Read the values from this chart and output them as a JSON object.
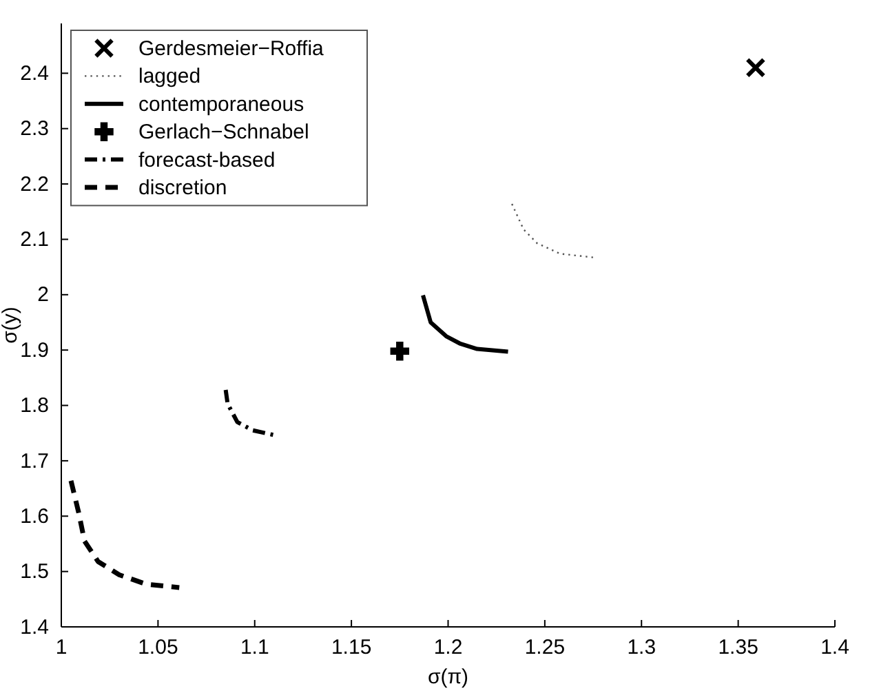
{
  "chart_data": {
    "type": "line",
    "xlabel": "σ(π)",
    "ylabel": "σ(y)",
    "xlim": [
      1,
      1.4
    ],
    "xticks": [
      1,
      1.05,
      1.1,
      1.15,
      1.2,
      1.25,
      1.3,
      1.35,
      1.4
    ],
    "ylim": [
      1.4,
      2.49
    ],
    "yticks": [
      1.4,
      1.5,
      1.6,
      1.7,
      1.8,
      1.9,
      2,
      2.1,
      2.2,
      2.3,
      2.4
    ],
    "legend": "top left",
    "grid": false,
    "series": [
      {
        "name": "Gerdesmeier−Roffia",
        "type": "scatter",
        "marker": "x",
        "color": "#000000",
        "x": [
          1.359
        ],
        "values": [
          2.41
        ]
      },
      {
        "name": "lagged",
        "line_style": "dotted",
        "color": "#555555",
        "x": [
          1.233,
          1.239,
          1.246,
          1.258,
          1.276
        ],
        "values": [
          2.164,
          2.118,
          2.093,
          2.074,
          2.067
        ]
      },
      {
        "name": "contemporaneous",
        "line_style": "solid",
        "color": "#000000",
        "x": [
          1.187,
          1.191,
          1.199,
          1.206,
          1.215,
          1.231
        ],
        "values": [
          1.999,
          1.95,
          1.925,
          1.912,
          1.902,
          1.897
        ]
      },
      {
        "name": "Gerlach−Schnabel",
        "type": "scatter",
        "marker": "cross",
        "color": "#000000",
        "x": [
          1.175
        ],
        "values": [
          1.898
        ]
      },
      {
        "name": "forecast-based",
        "line_style": "dashdot",
        "color": "#000000",
        "x": [
          1.085,
          1.086,
          1.091,
          1.099,
          1.112
        ],
        "values": [
          1.828,
          1.803,
          1.77,
          1.755,
          1.745
        ]
      },
      {
        "name": "discretion",
        "line_style": "dashed",
        "color": "#000000",
        "x": [
          1.005,
          1.009,
          1.012,
          1.019,
          1.03,
          1.044,
          1.061
        ],
        "values": [
          1.664,
          1.606,
          1.555,
          1.518,
          1.494,
          1.477,
          1.471
        ]
      }
    ]
  }
}
